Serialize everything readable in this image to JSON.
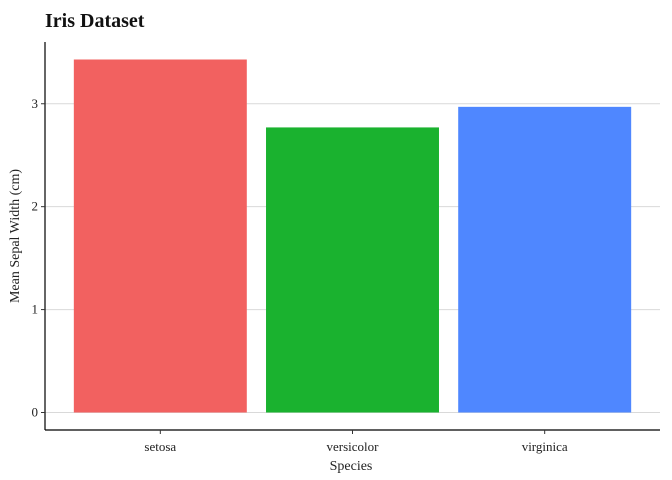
{
  "chart_data": {
    "type": "bar",
    "title": "Iris Dataset",
    "xlabel": "Species",
    "ylabel": "Mean Sepal Width (cm)",
    "categories": [
      "setosa",
      "versicolor",
      "virginica"
    ],
    "values": [
      3.43,
      2.77,
      2.97
    ],
    "ylim": [
      -0.17,
      3.6
    ],
    "y_ticks": [
      0,
      1,
      2,
      3
    ],
    "colors": [
      "#F26160",
      "#1AB22F",
      "#4F87FF"
    ],
    "grid": "horizontal major",
    "legend": "none"
  }
}
